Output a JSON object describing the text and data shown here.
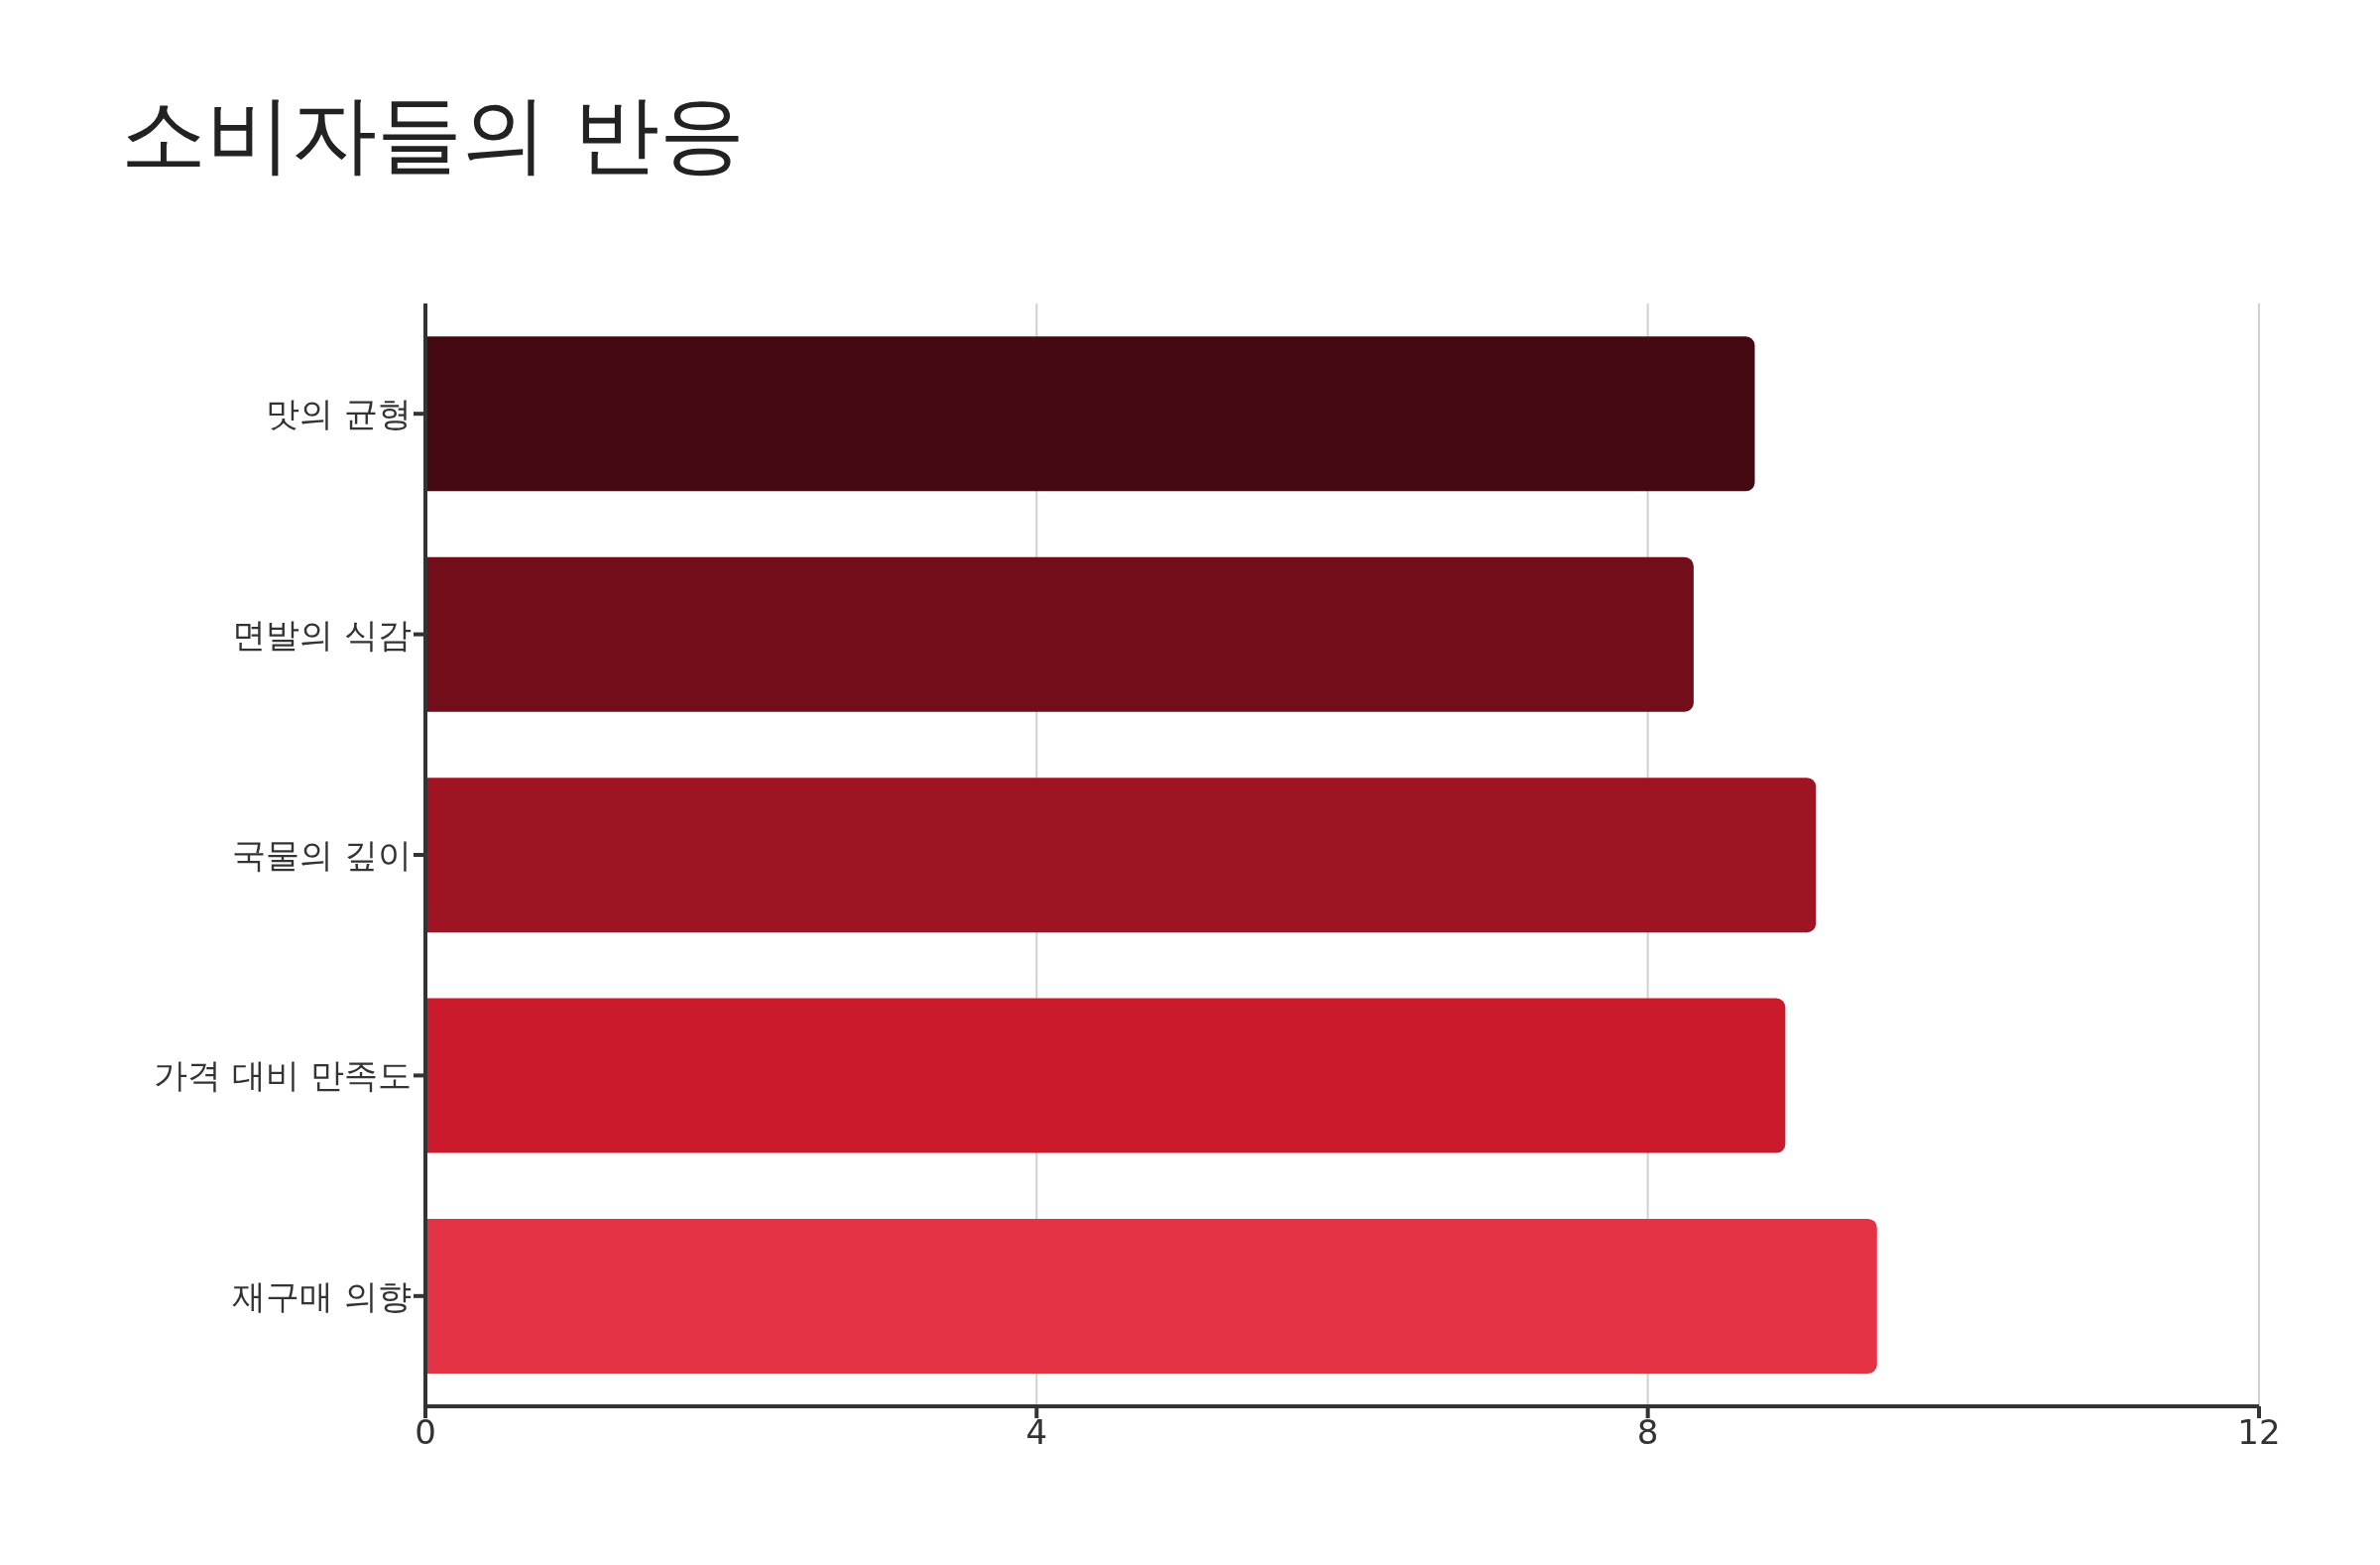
{
  "chart_data": {
    "type": "bar",
    "orientation": "horizontal",
    "title": "소비자들의 반응",
    "categories": [
      "맛의 균형",
      "면발의 식감",
      "국물의 깊이",
      "가격 대비 만족도",
      "재구매 의향"
    ],
    "values": [
      8.7,
      8.3,
      9.1,
      8.9,
      9.5
    ],
    "colors": [
      "#450a11",
      "#720e19",
      "#9e1423",
      "#cb1a2b",
      "#e43345"
    ],
    "xlim": [
      0,
      12
    ],
    "xticks": [
      0,
      4,
      8,
      12
    ],
    "grid": "x",
    "legend": false
  }
}
